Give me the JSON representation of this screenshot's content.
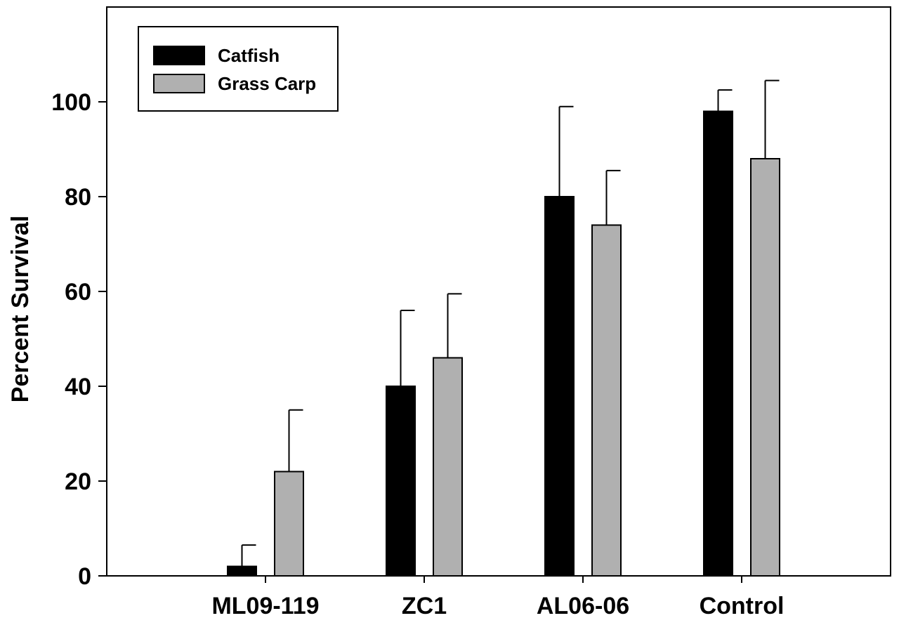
{
  "chart_data": {
    "type": "bar",
    "title": "",
    "xlabel": "",
    "ylabel": "Percent Survival",
    "categories": [
      "ML09-119",
      "ZC1",
      "AL06-06",
      "Control"
    ],
    "series": [
      {
        "name": "Catfish",
        "color": "#000000",
        "values": [
          2,
          40,
          80,
          98
        ],
        "errors": [
          4.5,
          16,
          19,
          4.5
        ]
      },
      {
        "name": "Grass Carp",
        "color": "#b0b0b0",
        "values": [
          22,
          46,
          74,
          88
        ],
        "errors": [
          13,
          13.5,
          11.5,
          16.5
        ]
      }
    ],
    "ylim": [
      0,
      120
    ],
    "yticks": [
      0,
      20,
      40,
      60,
      80,
      100
    ],
    "error_bars": "upper",
    "grid": false,
    "legend_position": "top-left"
  }
}
